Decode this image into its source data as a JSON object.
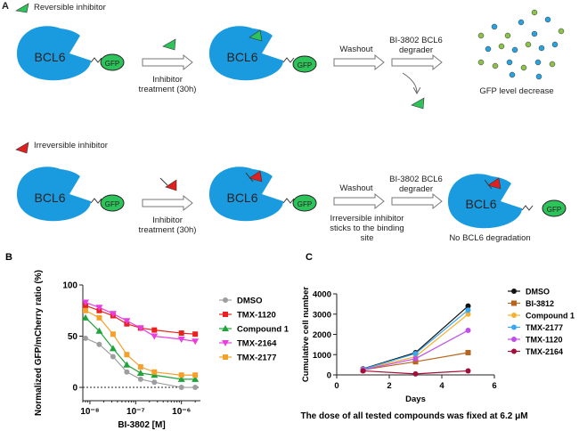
{
  "diagram": {
    "panel": "A",
    "rows": [
      {
        "legend": "Reversible inhibitor",
        "protein": "BCL6",
        "tag": "GFP",
        "step1": "Inhibitor treatment (30h)",
        "step2": "Washout",
        "step3": "BI-3802 BCL6 degrader",
        "result": "GFP level decrease"
      },
      {
        "legend": "Irreversible inhibitor",
        "protein": "BCL6",
        "tag": "GFP",
        "step1": "Inhibitor treatment (30h)",
        "step2": "Washout",
        "note": "Irreversible inhibitor sticks to the binding site",
        "step3": "BI-3802 BCL6 degrader",
        "result": "No BCL6 degradation"
      }
    ]
  },
  "chart_data": [
    {
      "type": "line",
      "panel": "B",
      "x_label": "BI-3802 [M]",
      "y_label": "Normalized GFP/mCherry ratio (%)",
      "x_scale": "log",
      "xlim": [
        7e-09,
        2.6e-06
      ],
      "xticks": [
        {
          "value": 1e-08,
          "label": "10⁻⁸"
        },
        {
          "value": 1e-07,
          "label": "10⁻⁷"
        },
        {
          "value": 1e-06,
          "label": "10⁻⁶"
        }
      ],
      "ylim": [
        -13,
        100
      ],
      "yticks": [
        0,
        50,
        100
      ],
      "hline": 0,
      "x": [
        8e-09,
        1.6e-08,
        3.2e-08,
        6.4e-08,
        1.28e-07,
        2.56e-07,
        1e-06,
        2e-06
      ],
      "series": [
        {
          "name": "DMSO",
          "color": "#9e9e9e",
          "marker": "circle",
          "values": [
            48,
            42,
            30,
            15,
            8,
            5,
            0,
            0
          ]
        },
        {
          "name": "TMX-1120",
          "color": "#e8231f",
          "marker": "square",
          "values": [
            80,
            75,
            70,
            62,
            58,
            56,
            53,
            52
          ]
        },
        {
          "name": "Compound 1",
          "color": "#1fa33a",
          "marker": "triangle",
          "values": [
            68,
            55,
            38,
            22,
            14,
            12,
            8,
            8
          ]
        },
        {
          "name": "TMX-2164",
          "color": "#e83fe0",
          "marker": "triangle-down",
          "values": [
            83,
            78,
            72,
            65,
            58,
            50,
            47,
            45
          ]
        },
        {
          "name": "TMX-2177",
          "color": "#f5a02a",
          "marker": "square",
          "values": [
            75,
            68,
            52,
            32,
            20,
            15,
            12,
            12
          ]
        }
      ]
    },
    {
      "type": "line",
      "panel": "C",
      "x_label": "Days",
      "y_label": "Cumulative cell number",
      "footnote": "The dose of all tested compounds was fixed at 6.2 μM",
      "xlim": [
        0,
        6
      ],
      "xticks": [
        0,
        2,
        4,
        6
      ],
      "ylim": [
        0,
        4000
      ],
      "yticks": [
        0,
        1000,
        2000,
        3000,
        4000
      ],
      "x": [
        1,
        3,
        5
      ],
      "series": [
        {
          "name": "DMSO",
          "color": "#111111",
          "marker": "circle",
          "values": [
            300,
            1100,
            3400
          ]
        },
        {
          "name": "BI-3812",
          "color": "#b5651d",
          "marker": "square",
          "values": [
            250,
            650,
            1100
          ]
        },
        {
          "name": "Compound 1",
          "color": "#f5b030",
          "marker": "circle",
          "values": [
            280,
            900,
            3000
          ]
        },
        {
          "name": "TMX-2177",
          "color": "#3aa8f0",
          "marker": "circle",
          "values": [
            280,
            1050,
            3200
          ]
        },
        {
          "name": "TMX-1120",
          "color": "#c04ee8",
          "marker": "circle",
          "values": [
            250,
            800,
            2200
          ]
        },
        {
          "name": "TMX-2164",
          "color": "#a0103a",
          "marker": "circle",
          "values": [
            200,
            50,
            200
          ]
        }
      ]
    }
  ]
}
